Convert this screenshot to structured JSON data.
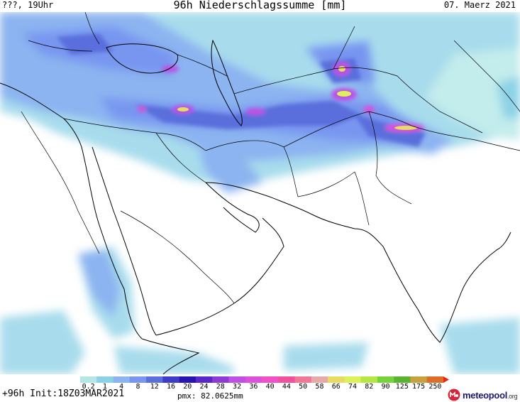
{
  "header": {
    "left": "???, 19Uhr",
    "title": "96h Niederschlagssumme [mm]",
    "right": "07. Maerz 2021"
  },
  "legend": {
    "labels": [
      "0.2",
      "1",
      "4",
      "8",
      "12",
      "16",
      "20",
      "24",
      "28",
      "32",
      "36",
      "40",
      "44",
      "50",
      "58",
      "66",
      "74",
      "82",
      "90",
      "125",
      "175",
      "250"
    ],
    "colors": [
      "#b4e6e6",
      "#8cd2e6",
      "#8cb4f0",
      "#7896f0",
      "#5a6edc",
      "#3c3cc8",
      "#2814b4",
      "#5a28c8",
      "#8c3cd2",
      "#be50e6",
      "#dc50dc",
      "#f050c8",
      "#f0509c",
      "#f07896",
      "#e6aaaa",
      "#e6dc64",
      "#dcf05a",
      "#b4e646",
      "#78d23c",
      "#5ab432",
      "#c8a03c",
      "#dc6e28"
    ],
    "arrow_color": "#e62814"
  },
  "footer": {
    "init": "+96h Init:18Z03MAR2021",
    "pmx": "pmx: 82.0625mm"
  },
  "logo": {
    "brand": "meteopool",
    "suffix": ".org",
    "accent": "#d2283c"
  }
}
